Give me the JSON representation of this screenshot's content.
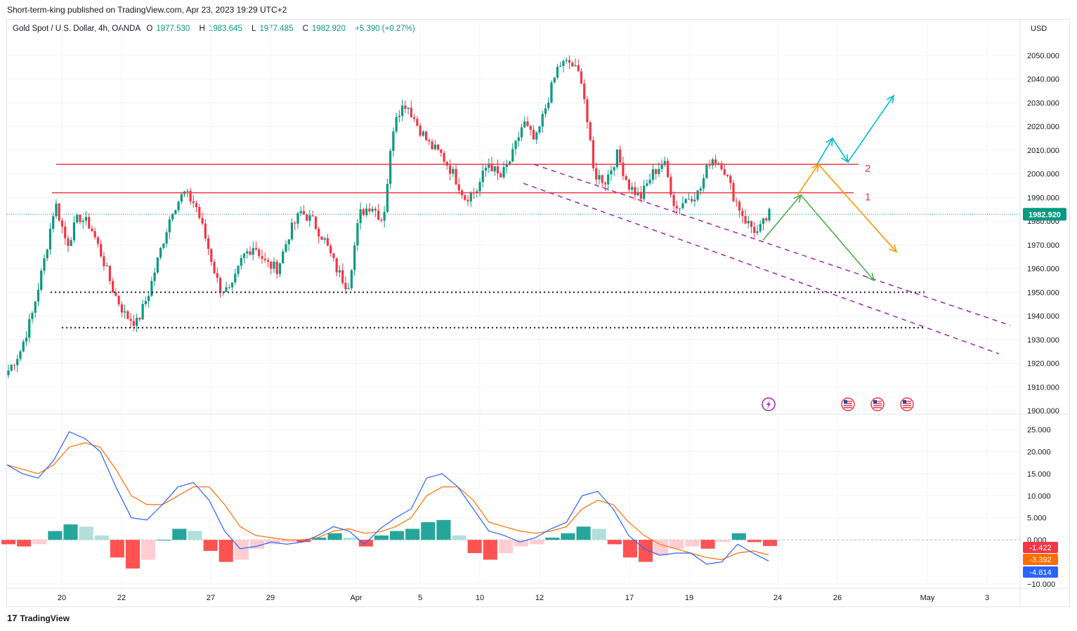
{
  "publisher": "Short-term-king published on TradingView.com, Apr 23, 2023 19:29 UTC+2",
  "legend": {
    "symbol": "Gold Spot / U.S. Dollar, 4h, OANDA",
    "o_label": "O",
    "o": "1977.530",
    "h_label": "H",
    "h": "1983.645",
    "l_label": "L",
    "l": "1977.485",
    "c_label": "C",
    "c": "1982.920",
    "change": "+5.390 (+0.27%)"
  },
  "currency": "USD",
  "branding": "TradingView",
  "colors": {
    "up": "#089981",
    "down": "#f23645",
    "resistance": "#f23645",
    "channel": "#9c27b0",
    "macd": "#2962ff",
    "signal": "#ff6d00",
    "path_green": "#4caf50",
    "path_orange": "#ff9800",
    "path_cyan": "#00bcd4",
    "hist_up_strong": "#26a69a",
    "hist_up_weak": "#b2dfdb",
    "hist_down_strong": "#ff5252",
    "hist_down_weak": "#ffcdd2"
  },
  "chart_data": [
    {
      "type": "candlestick",
      "title": "Gold Spot / U.S. Dollar, 4h, OANDA",
      "ylabel": "USD",
      "ylim": [
        1900,
        2050
      ],
      "yticks": [
        "2050.000",
        "2040.000",
        "2030.000",
        "2020.000",
        "2010.000",
        "2000.000",
        "1990.000",
        "1980.000",
        "1970.000",
        "1960.000",
        "1950.000",
        "1940.000",
        "1930.000",
        "1920.000",
        "1910.000",
        "1900.000"
      ],
      "xticks": [
        "20",
        "22",
        "27",
        "29",
        "Apr",
        "5",
        "10",
        "12",
        "17",
        "19",
        "24",
        "26",
        "May",
        "3"
      ],
      "last_price": "1982.920",
      "close_path": [
        1917,
        1925,
        1940,
        1962,
        1988,
        1970,
        1982,
        1978,
        1965,
        1950,
        1940,
        1937,
        1950,
        1968,
        1985,
        1992,
        1987,
        1970,
        1952,
        1950,
        1965,
        1970,
        1962,
        1960,
        1975,
        1984,
        1980,
        1972,
        1960,
        1952,
        1983,
        1987,
        1980,
        2025,
        2030,
        2020,
        2012,
        2008,
        2000,
        1990,
        1993,
        2005,
        1998,
        2007,
        2022,
        2013,
        2030,
        2046,
        2047,
        2040,
        2000,
        1997,
        2008,
        1995,
        1990,
        2000,
        2005,
        1985,
        1990,
        1992,
        2007,
        2004,
        1990,
        1980,
        1975,
        1983
      ],
      "horizontal_lines": [
        {
          "label": "2",
          "price": 2004
        },
        {
          "label": "1",
          "price": 1992
        },
        {
          "label": "",
          "price": 1950
        },
        {
          "label": "",
          "price": 1935
        }
      ],
      "channel_lines": "two dashed descending lines from ~2004 (Apr 12) toward ~1925 (end of May)",
      "projection_paths": [
        {
          "color": "green",
          "points": [
            1972,
            1991,
            1955
          ]
        },
        {
          "color": "orange",
          "points": [
            1991,
            2004,
            1967
          ]
        },
        {
          "color": "cyan",
          "points": [
            2004,
            2015,
            2005,
            2033
          ]
        }
      ],
      "event_markers": [
        "earnings",
        "us-flag",
        "us-flag",
        "us-flag"
      ]
    },
    {
      "type": "line",
      "title": "MACD",
      "ylim": [
        -10,
        25
      ],
      "yticks": [
        "25.000",
        "20.000",
        "15.000",
        "10.000",
        "5.000",
        "0.000",
        "−10.000"
      ],
      "series": [
        {
          "name": "MACD",
          "last": "-4.814",
          "values": [
            17,
            15,
            14,
            18,
            24.5,
            23,
            20,
            12,
            5,
            4.5,
            8,
            12,
            13,
            9,
            2,
            -2,
            -1.5,
            -0.5,
            -1,
            -0.5,
            1,
            3,
            2,
            -1,
            2.5,
            5,
            7,
            14,
            15,
            12,
            7,
            2,
            1,
            -0.5,
            0.5,
            2.5,
            4,
            10,
            11,
            7,
            1,
            -2,
            -3.5,
            -3,
            -3,
            -5.5,
            -5,
            -1,
            -3,
            -4.8
          ]
        },
        {
          "name": "Signal",
          "last": "-3.392",
          "values": [
            17,
            16,
            15,
            17,
            21,
            22,
            21,
            16,
            10,
            8,
            8,
            10,
            12,
            12,
            8,
            3,
            1,
            0.5,
            0,
            0,
            0.5,
            2,
            2.5,
            1.5,
            1.8,
            3,
            5,
            10,
            12,
            12,
            9,
            4,
            3,
            2,
            1.5,
            2,
            3,
            7,
            9,
            8,
            4,
            1,
            -1,
            -2,
            -3,
            -4,
            -4.5,
            -3,
            -2.5,
            -3.4
          ]
        },
        {
          "name": "Histogram",
          "last": "-1.422",
          "values": [
            -1,
            -1.5,
            -1,
            2,
            3.5,
            3,
            1,
            -4,
            -6.5,
            -4.5,
            0,
            2.5,
            2,
            -2.5,
            -5,
            -4.5,
            -2,
            -1,
            -0.5,
            -0.5,
            0.5,
            1.5,
            0.5,
            -1.5,
            1,
            2,
            2.5,
            4,
            4.5,
            1,
            -3,
            -4.5,
            -3,
            -1.5,
            -1,
            0.5,
            1.5,
            3,
            2.5,
            -1,
            -4,
            -5,
            -3.5,
            -2,
            -1.5,
            -2,
            -0.5,
            1.5,
            -0.5,
            -1.4
          ]
        }
      ]
    }
  ]
}
